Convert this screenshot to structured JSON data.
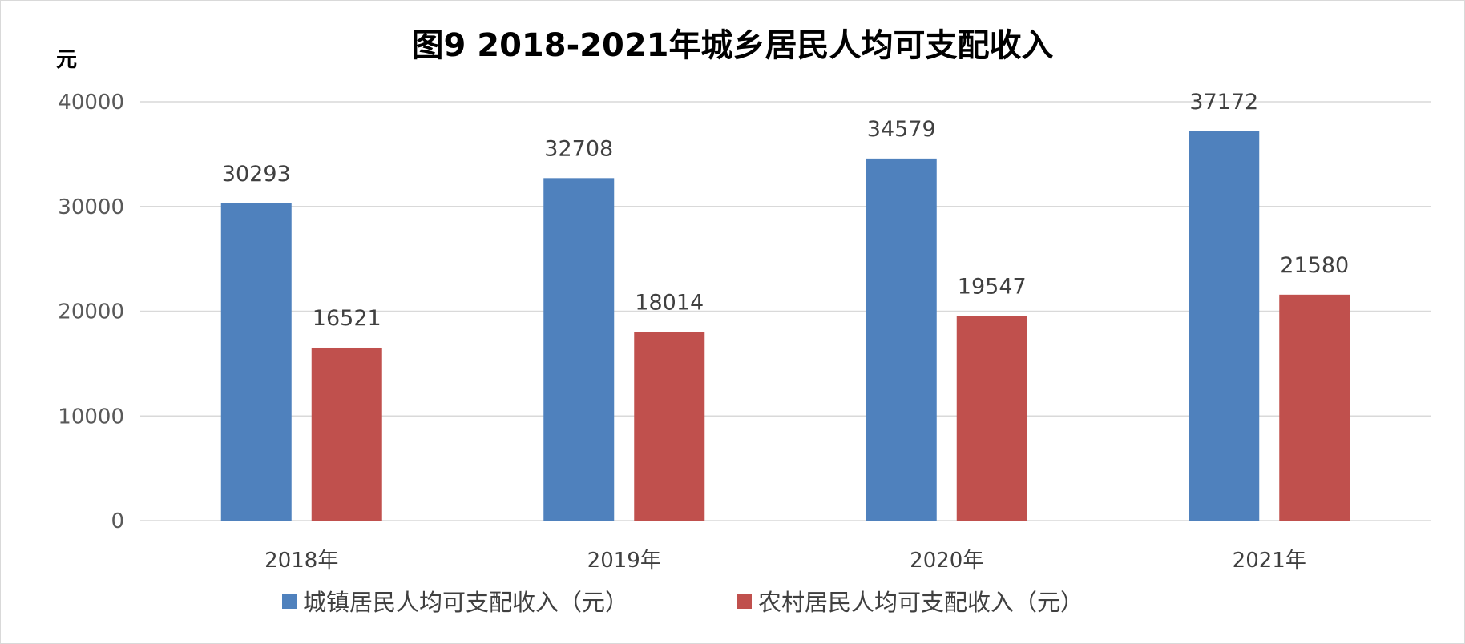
{
  "chart_data": {
    "type": "bar",
    "title": "图9 2018-2021年城乡居民人均可支配收入",
    "unit_label": "元",
    "categories": [
      "2018年",
      "2019年",
      "2020年",
      "2021年"
    ],
    "ylim": [
      0,
      40000
    ],
    "yticks": [
      "0",
      "10000",
      "20000",
      "30000",
      "40000"
    ],
    "grid": true,
    "legend_position": "bottom",
    "series": [
      {
        "name": "城镇居民人均可支配收入（元）",
        "color": "#4f81bd",
        "values": [
          30293,
          32708,
          34579,
          37172
        ]
      },
      {
        "name": "农村居民人均可支配收入（元）",
        "color": "#c0504d",
        "values": [
          16521,
          18014,
          19547,
          21580
        ]
      }
    ]
  }
}
